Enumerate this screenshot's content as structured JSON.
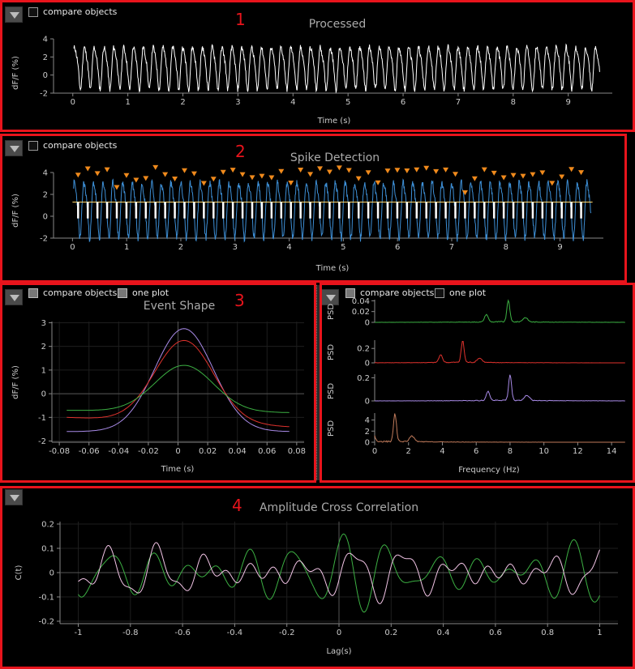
{
  "panel1": {
    "number": "1",
    "compare_label": "compare objects",
    "title": "Processed",
    "ylabel": "dF/F (%)",
    "xlabel": "Time (s)"
  },
  "panel2": {
    "number": "2",
    "compare_label": "compare objects",
    "title": "Spike Detection",
    "ylabel": "dF/F (%)",
    "xlabel": "Time (s)"
  },
  "panel3": {
    "number": "3",
    "compare_label": "compare objects",
    "one_plot_label": "one plot",
    "title": "Event Shape",
    "ylabel": "dF/F (%)",
    "xlabel": "Time (s)"
  },
  "panel3b": {
    "compare_label": "compare objects",
    "one_plot_label": "one plot",
    "psd_label": "PSD",
    "xlabel": "Frequency (Hz)"
  },
  "panel4": {
    "number": "4",
    "title": "Amplitude Cross Correlation",
    "ylabel": "C(t)",
    "xlabel": "Lag(s)"
  },
  "colors": {
    "frame": "#e8141c",
    "trace_white": "#ffffff",
    "trace_blue": "#3d8fd6",
    "spike_marker": "#f08a1c",
    "threshold": "#ffd66b",
    "green": "#3cb043",
    "red": "#e0322d",
    "purple": "#a98be8",
    "brown": "#c07a5a",
    "pink": "#f2c4e6"
  },
  "chart_data": [
    {
      "type": "line",
      "title": "Processed",
      "xlabel": "Time (s)",
      "ylabel": "dF/F (%)",
      "xlim": [
        0,
        9.6
      ],
      "ylim": [
        -2,
        4
      ],
      "xticks": [
        "0",
        "1",
        "2",
        "3",
        "4",
        "5",
        "6",
        "7",
        "8",
        "9"
      ],
      "yticks": [
        "-2",
        "0",
        "2",
        "4"
      ],
      "series": [
        {
          "oscillation_hz": 5.6,
          "amplitude_range": [
            -1.8,
            4.0
          ]
        }
      ]
    },
    {
      "type": "line",
      "title": "Spike Detection",
      "xlabel": "Time (s)",
      "ylabel": "dF/F (%)",
      "xlim": [
        0,
        9.6
      ],
      "ylim": [
        -2,
        4
      ],
      "xticks": [
        "0",
        "1",
        "2",
        "3",
        "4",
        "5",
        "6",
        "7",
        "8",
        "9"
      ],
      "yticks": [
        "-2",
        "0",
        "2",
        "4"
      ],
      "threshold": 1.3,
      "series": [
        {
          "oscillation_hz": 5.6,
          "amplitude_range": [
            -2.3,
            4.2
          ]
        }
      ]
    },
    {
      "type": "line",
      "title": "Event Shape",
      "xlabel": "Time (s)",
      "ylabel": "dF/F (%)",
      "xlim": [
        -0.08,
        0.08
      ],
      "ylim": [
        -2,
        3
      ],
      "xticks": [
        "-0.08",
        "-0.06",
        "-0.04",
        "-0.02",
        "0",
        "0.02",
        "0.04",
        "0.06",
        "0.08"
      ],
      "yticks": [
        "-2",
        "-1",
        "0",
        "1",
        "2",
        "3"
      ],
      "series": [
        {
          "color": "purple",
          "x": [
            -0.075,
            -0.06,
            -0.04,
            -0.02,
            0,
            0.005,
            0.02,
            0.04,
            0.06,
            0.075
          ],
          "y": [
            -1.6,
            -1.55,
            -1.0,
            0.6,
            2.6,
            2.75,
            2.2,
            0.1,
            -1.4,
            -1.6
          ]
        },
        {
          "color": "red",
          "x": [
            -0.075,
            -0.06,
            -0.04,
            -0.02,
            0,
            0.005,
            0.02,
            0.04,
            0.06,
            0.075
          ],
          "y": [
            -1.0,
            -0.9,
            -0.55,
            0.7,
            2.1,
            2.25,
            1.9,
            0.2,
            -0.9,
            -1.4
          ]
        },
        {
          "color": "green",
          "x": [
            -0.075,
            -0.06,
            -0.04,
            -0.02,
            0,
            0.005,
            0.02,
            0.04,
            0.06,
            0.075
          ],
          "y": [
            -0.7,
            -0.8,
            -0.55,
            0.3,
            1.1,
            1.2,
            0.95,
            0.0,
            -0.7,
            -0.8
          ]
        }
      ]
    },
    {
      "type": "line",
      "title": "",
      "xlabel": "Frequency (Hz)",
      "xlim": [
        0,
        15
      ],
      "xticks": [
        "0",
        "2",
        "4",
        "6",
        "8",
        "10",
        "12",
        "14"
      ],
      "subplots": [
        {
          "ylabel": "PSD",
          "color": "green",
          "yticks": [
            "0",
            "0.02",
            "0.04"
          ],
          "peak_hz": 7.9,
          "peak": 0.04
        },
        {
          "ylabel": "PSD",
          "color": "red",
          "yticks": [
            "0",
            "0.2"
          ],
          "peak_hz": 5.2,
          "peak": 0.3
        },
        {
          "ylabel": "PSD",
          "color": "purple",
          "yticks": [
            "0",
            "0.2"
          ],
          "peak_hz": 8.0,
          "peak": 0.22
        },
        {
          "ylabel": "PSD",
          "color": "brown",
          "yticks": [
            "0",
            "2",
            "4"
          ],
          "peak_hz": 1.2,
          "peak": 5.0
        }
      ]
    },
    {
      "type": "line",
      "title": "Amplitude Cross Correlation",
      "xlabel": "Lag(s)",
      "ylabel": "C(t)",
      "xlim": [
        -1,
        1
      ],
      "ylim": [
        -0.2,
        0.2
      ],
      "xticks": [
        "-1",
        "-0.8",
        "-0.6",
        "-0.4",
        "-0.2",
        "0",
        "0.2",
        "0.4",
        "0.6",
        "0.8",
        "1"
      ],
      "yticks": [
        "-0.2",
        "-0.1",
        "0",
        "0.1",
        "0.2"
      ],
      "series": [
        {
          "color": "green",
          "description_range": [
            -0.18,
            0.17
          ]
        },
        {
          "color": "pink",
          "description_range": [
            -0.12,
            0.15
          ]
        }
      ]
    }
  ]
}
